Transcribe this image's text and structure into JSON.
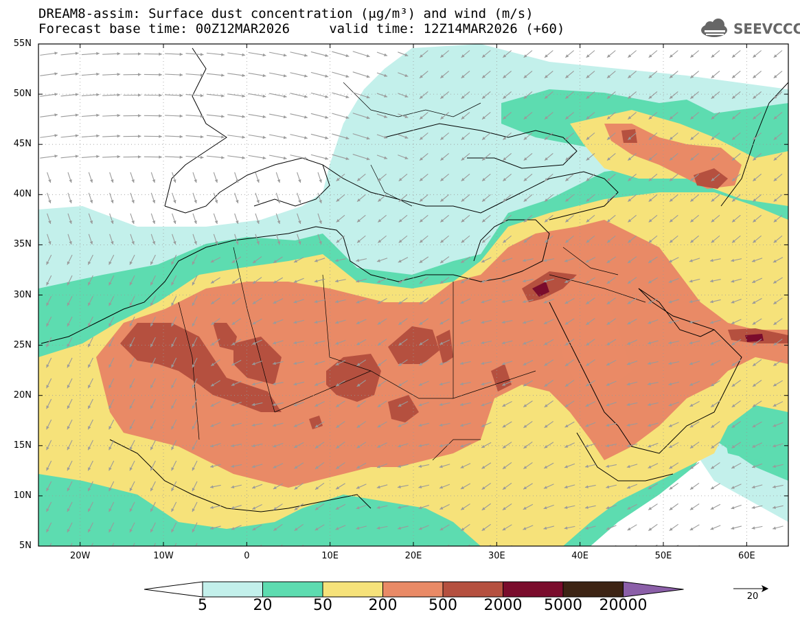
{
  "title_line1": "DREAM8-assim: Surface dust concentration (μg/m³) and wind (m/s)",
  "title_line2": "Forecast base time: 00Z12MAR2026     valid time: 12Z14MAR2026 (+60)",
  "logo": {
    "text": "SEEVCCC",
    "icon": "cloud-icon"
  },
  "map": {
    "lon_range": [
      -25,
      65
    ],
    "lat_range": [
      5,
      55
    ],
    "lat_ticks": [
      "55N",
      "50N",
      "45N",
      "40N",
      "35N",
      "30N",
      "25N",
      "20N",
      "15N",
      "10N",
      "5N"
    ],
    "lon_ticks": [
      "20W",
      "10W",
      "0",
      "10E",
      "20E",
      "30E",
      "40E",
      "50E",
      "60E"
    ],
    "grid": "dotted"
  },
  "colorbar": {
    "labels": [
      "5",
      "20",
      "50",
      "200",
      "500",
      "2000",
      "5000",
      "20000"
    ],
    "colors": [
      "#c3f0eb",
      "#5ddcb0",
      "#f6e27a",
      "#e98a66",
      "#b5503f",
      "#7a0c2c",
      "#3d2414",
      "#8b5fa8"
    ],
    "below_color": "#ffffff",
    "above_color": "#8b5fa8"
  },
  "wind_reference": {
    "value": "20"
  }
}
